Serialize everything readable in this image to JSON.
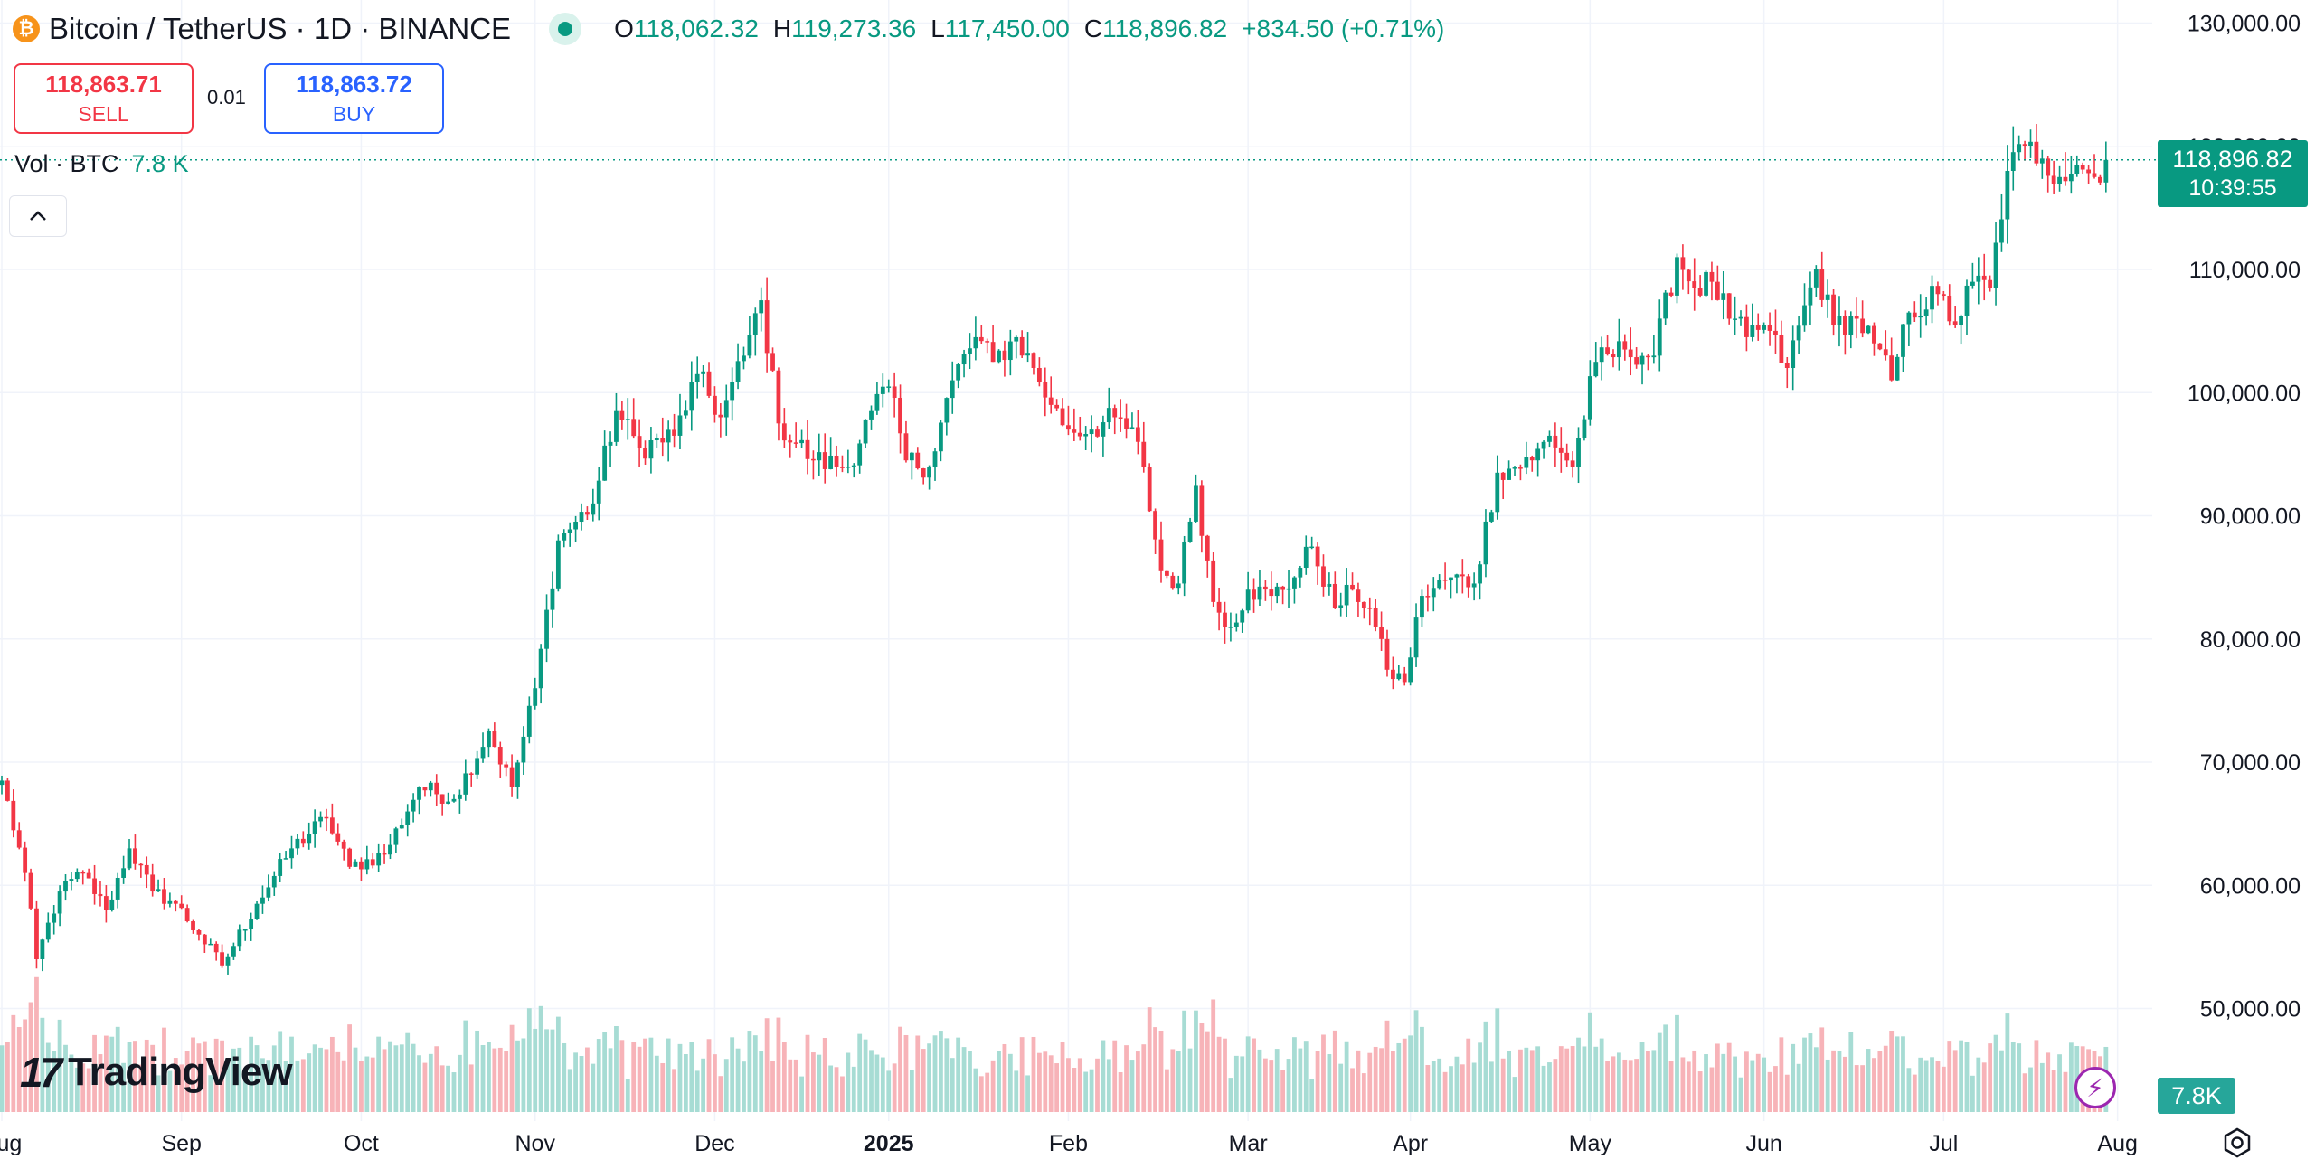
{
  "header": {
    "coin_letter": "₿",
    "title": "Bitcoin / TetherUS · 1D · BINANCE",
    "open_label": "O",
    "open": "118,062.32",
    "high_label": "H",
    "high": "119,273.36",
    "low_label": "L",
    "low": "117,450.00",
    "close_label": "C",
    "close": "118,896.82",
    "change": "+834.50 (+0.71%)"
  },
  "trade": {
    "sell_price": "118,863.71",
    "sell_label": "SELL",
    "spread": "0.01",
    "buy_price": "118,863.72",
    "buy_label": "BUY"
  },
  "volume": {
    "label": "Vol · BTC",
    "value": "7.8 K",
    "tag": "7.8K"
  },
  "price_tag": {
    "price": "118,896.82",
    "countdown": "10:39:55"
  },
  "logo": {
    "mark": "17",
    "text": "TradingView"
  },
  "icons": {
    "collapse": "chevron-up-icon",
    "coin": "bitcoin-icon",
    "bolt": "lightning-icon",
    "settings": "gear-icon"
  },
  "colors": {
    "up": "#089981",
    "down": "#f23645",
    "up_volume": "#a7dcd4",
    "down_volume": "#f7b3b8",
    "brand": "#2962ff"
  },
  "chart_data": {
    "type": "candlestick",
    "symbol": "Bitcoin / TetherUS",
    "interval": "1D",
    "exchange": "BINANCE",
    "y_ticks": [
      50000,
      60000,
      70000,
      80000,
      90000,
      100000,
      110000,
      120000,
      130000
    ],
    "y_tick_labels": [
      "50,000.00",
      "60,000.00",
      "70,000.00",
      "80,000.00",
      "90,000.00",
      "100,000.00",
      "110,000.00",
      "120,000.00",
      "130,000.00"
    ],
    "x_tick_labels": [
      "Aug",
      "Sep",
      "Oct",
      "Nov",
      "Dec",
      "2025",
      "Feb",
      "Mar",
      "Apr",
      "May",
      "Jun",
      "Jul",
      "Aug"
    ],
    "last_price": 118896.82,
    "anchors": [
      {
        "day": 0,
        "close": 68500
      },
      {
        "day": 4,
        "close": 61000
      },
      {
        "day": 6,
        "close": 54000
      },
      {
        "day": 10,
        "close": 59500
      },
      {
        "day": 14,
        "close": 61000
      },
      {
        "day": 18,
        "close": 58000
      },
      {
        "day": 22,
        "close": 63000
      },
      {
        "day": 26,
        "close": 59500
      },
      {
        "day": 30,
        "close": 58500
      },
      {
        "day": 34,
        "close": 56000
      },
      {
        "day": 38,
        "close": 53500
      },
      {
        "day": 44,
        "close": 58500
      },
      {
        "day": 50,
        "close": 63000
      },
      {
        "day": 56,
        "close": 65500
      },
      {
        "day": 60,
        "close": 61500
      },
      {
        "day": 66,
        "close": 62500
      },
      {
        "day": 72,
        "close": 68000
      },
      {
        "day": 78,
        "close": 67000
      },
      {
        "day": 84,
        "close": 72500
      },
      {
        "day": 88,
        "close": 68000
      },
      {
        "day": 92,
        "close": 76000
      },
      {
        "day": 96,
        "close": 88000
      },
      {
        "day": 102,
        "close": 91000
      },
      {
        "day": 106,
        "close": 98500
      },
      {
        "day": 110,
        "close": 95500
      },
      {
        "day": 116,
        "close": 96500
      },
      {
        "day": 120,
        "close": 101500
      },
      {
        "day": 124,
        "close": 98000
      },
      {
        "day": 128,
        "close": 103000
      },
      {
        "day": 131,
        "close": 107500
      },
      {
        "day": 134,
        "close": 97500
      },
      {
        "day": 140,
        "close": 94500
      },
      {
        "day": 146,
        "close": 94000
      },
      {
        "day": 150,
        "close": 98500
      },
      {
        "day": 153,
        "close": 100500
      },
      {
        "day": 156,
        "close": 94500
      },
      {
        "day": 160,
        "close": 94000
      },
      {
        "day": 164,
        "close": 101000
      },
      {
        "day": 168,
        "close": 104500
      },
      {
        "day": 171,
        "close": 102500
      },
      {
        "day": 175,
        "close": 104500
      },
      {
        "day": 178,
        "close": 102000
      },
      {
        "day": 181,
        "close": 99000
      },
      {
        "day": 184,
        "close": 97000
      },
      {
        "day": 188,
        "close": 97000
      },
      {
        "day": 192,
        "close": 98000
      },
      {
        "day": 196,
        "close": 96000
      },
      {
        "day": 200,
        "close": 85500
      },
      {
        "day": 203,
        "close": 84500
      },
      {
        "day": 206,
        "close": 92500
      },
      {
        "day": 209,
        "close": 83000
      },
      {
        "day": 212,
        "close": 81000
      },
      {
        "day": 215,
        "close": 84000
      },
      {
        "day": 219,
        "close": 83500
      },
      {
        "day": 223,
        "close": 85000
      },
      {
        "day": 226,
        "close": 87500
      },
      {
        "day": 230,
        "close": 82500
      },
      {
        "day": 233,
        "close": 84000
      },
      {
        "day": 236,
        "close": 82500
      },
      {
        "day": 239,
        "close": 77500
      },
      {
        "day": 242,
        "close": 76500
      },
      {
        "day": 245,
        "close": 83500
      },
      {
        "day": 250,
        "close": 85000
      },
      {
        "day": 254,
        "close": 84500
      },
      {
        "day": 258,
        "close": 93500
      },
      {
        "day": 264,
        "close": 94500
      },
      {
        "day": 267,
        "close": 96500
      },
      {
        "day": 271,
        "close": 94000
      },
      {
        "day": 275,
        "close": 102500
      },
      {
        "day": 280,
        "close": 103500
      },
      {
        "day": 285,
        "close": 103000
      },
      {
        "day": 289,
        "close": 111000
      },
      {
        "day": 292,
        "close": 108500
      },
      {
        "day": 295,
        "close": 109000
      },
      {
        "day": 298,
        "close": 106000
      },
      {
        "day": 301,
        "close": 104500
      },
      {
        "day": 304,
        "close": 105500
      },
      {
        "day": 308,
        "close": 102000
      },
      {
        "day": 313,
        "close": 110000
      },
      {
        "day": 316,
        "close": 105500
      },
      {
        "day": 320,
        "close": 106000
      },
      {
        "day": 323,
        "close": 104000
      },
      {
        "day": 326,
        "close": 101000
      },
      {
        "day": 329,
        "close": 106500
      },
      {
        "day": 334,
        "close": 108000
      },
      {
        "day": 337,
        "close": 105500
      },
      {
        "day": 340,
        "close": 109000
      },
      {
        "day": 343,
        "close": 108500
      },
      {
        "day": 346,
        "close": 118000
      },
      {
        "day": 349,
        "close": 120000
      },
      {
        "day": 352,
        "close": 119000
      },
      {
        "day": 355,
        "close": 117500
      },
      {
        "day": 358,
        "close": 118500
      },
      {
        "day": 361,
        "close": 117500
      },
      {
        "day": 363,
        "close": 118896.82
      }
    ],
    "grid": true,
    "volume_pane": true
  }
}
